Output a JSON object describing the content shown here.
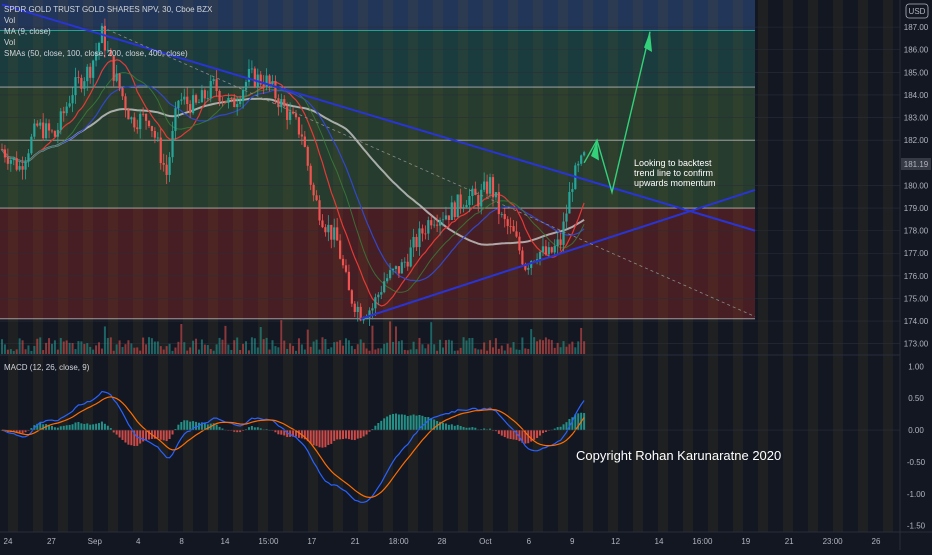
{
  "chart_data": {
    "type": "candlestick",
    "symbol": "SPDR GOLD TRUST GOLD SHARES NPV, 30, Cboe BZX",
    "indicators": [
      "Vol",
      "MA (9, close)",
      "Vol",
      "SMAs (50, close, 100, close, 200, close, 400, close)"
    ],
    "currency": "USD",
    "last_price": "181.19",
    "price_axis": {
      "ticks": [
        "187.00",
        "186.00",
        "185.00",
        "184.00",
        "183.00",
        "182.00",
        "180.00",
        "179.00",
        "178.00",
        "177.00",
        "176.00",
        "175.00",
        "174.00",
        "173.00"
      ],
      "range": [
        172.5,
        188.2
      ]
    },
    "macd": {
      "label": "MACD (12, 26, close, 9)",
      "ticks": [
        "1.00",
        "0.50",
        "0.00",
        "-0.50",
        "-1.00",
        "-1.50"
      ],
      "range": [
        -1.6,
        1.1
      ]
    },
    "time_axis": [
      "24",
      "27",
      "Sep",
      "4",
      "8",
      "14",
      "15:00",
      "17",
      "21",
      "18:00",
      "28",
      "Oct",
      "6",
      "9",
      "12",
      "14",
      "16:00",
      "19",
      "21",
      "23:00",
      "26"
    ],
    "price_series": [
      {
        "i": 0,
        "p": 181.6
      },
      {
        "i": 6,
        "p": 180.8
      },
      {
        "i": 12,
        "p": 182.6
      },
      {
        "i": 18,
        "p": 182.2
      },
      {
        "i": 24,
        "p": 184.2
      },
      {
        "i": 30,
        "p": 185.2
      },
      {
        "i": 34,
        "p": 186.7
      },
      {
        "i": 38,
        "p": 185.0
      },
      {
        "i": 44,
        "p": 182.9
      },
      {
        "i": 50,
        "p": 183.0
      },
      {
        "i": 56,
        "p": 180.5
      },
      {
        "i": 60,
        "p": 183.8
      },
      {
        "i": 66,
        "p": 183.5
      },
      {
        "i": 72,
        "p": 184.4
      },
      {
        "i": 78,
        "p": 183.5
      },
      {
        "i": 84,
        "p": 184.8
      },
      {
        "i": 90,
        "p": 184.6
      },
      {
        "i": 96,
        "p": 183.4
      },
      {
        "i": 102,
        "p": 182.3
      },
      {
        "i": 106,
        "p": 179.5
      },
      {
        "i": 110,
        "p": 178.3
      },
      {
        "i": 114,
        "p": 177.5
      },
      {
        "i": 118,
        "p": 175.2
      },
      {
        "i": 122,
        "p": 174.4
      },
      {
        "i": 126,
        "p": 174.6
      },
      {
        "i": 130,
        "p": 175.8
      },
      {
        "i": 136,
        "p": 176.4
      },
      {
        "i": 140,
        "p": 177.3
      },
      {
        "i": 146,
        "p": 178.6
      },
      {
        "i": 152,
        "p": 178.8
      },
      {
        "i": 158,
        "p": 179.5
      },
      {
        "i": 162,
        "p": 179.4
      },
      {
        "i": 166,
        "p": 180.1
      },
      {
        "i": 170,
        "p": 178.5
      },
      {
        "i": 174,
        "p": 177.8
      },
      {
        "i": 178,
        "p": 176.5
      },
      {
        "i": 182,
        "p": 177.1
      },
      {
        "i": 186,
        "p": 176.9
      },
      {
        "i": 190,
        "p": 177.5
      },
      {
        "i": 194,
        "p": 180.2
      },
      {
        "i": 198,
        "p": 181.2
      }
    ],
    "horizontal_levels": [
      186.85,
      184.35,
      182.0,
      179.0,
      174.1
    ],
    "zones": [
      {
        "from": 186.85,
        "to": 188.3,
        "color": "#27416b"
      },
      {
        "from": 184.35,
        "to": 186.85,
        "color": "#1d4a4a"
      },
      {
        "from": 179.0,
        "to": 184.35,
        "color": "#2c4a34"
      },
      {
        "from": 174.1,
        "to": 179.0,
        "color": "#5a2226"
      }
    ],
    "annotation": {
      "lines": [
        "Looking to backtest",
        "trend line to confirm",
        "upwards momentum"
      ]
    },
    "copyright": "Copyright Rohan Karunaratne 2020",
    "colors": {
      "up": "#26a69a",
      "down": "#ef5350",
      "trendline": "#2934d6",
      "arrow": "#33d17a",
      "sma_white": "#c9c9c9",
      "sma_red": "#e53935",
      "sma_blue": "#3347c8",
      "sma_green": "#3a7f3a",
      "macd": "#2962ff",
      "signal": "#ff6d00"
    }
  }
}
